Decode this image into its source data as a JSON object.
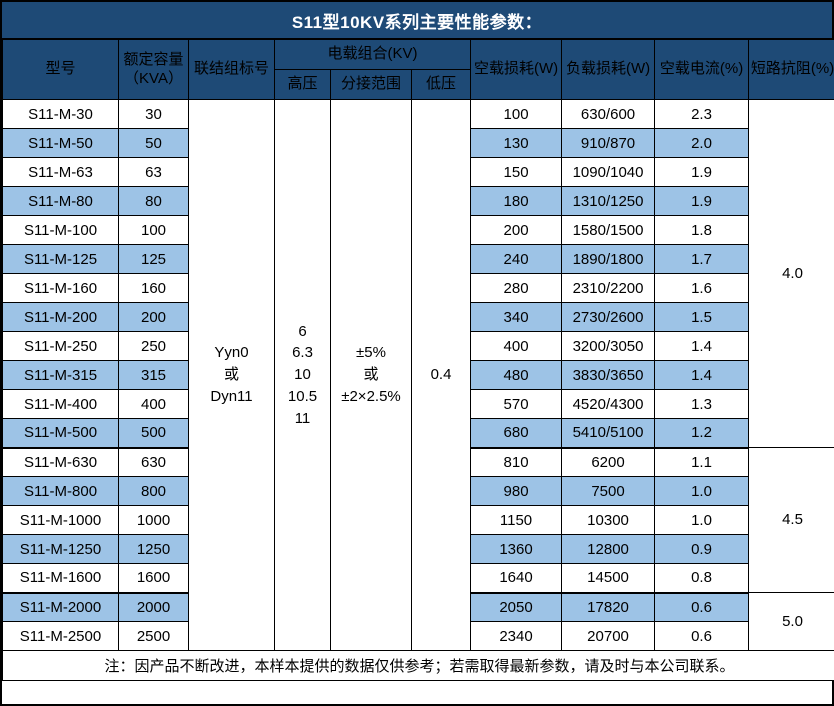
{
  "title": "S11型10KV系列主要性能参数：",
  "colors": {
    "header_bg": "#1E4A76",
    "stripe_bg": "#9DC3E6",
    "border": "#000000"
  },
  "table": {
    "headers": {
      "model": "型号",
      "capacity": "额定容量\n（KVA）",
      "connection": "联结组标号",
      "voltage_group": "电载组合(KV)",
      "hv": "高压",
      "tap_range": "分接范围",
      "lv": "低压",
      "no_load_loss": "空载损耗(W)",
      "load_loss": "负载损耗(W)",
      "no_load_current": "空载电流(%)",
      "impedance": "短路抗阻(%)"
    },
    "merged": {
      "connection": "Yyn0\n或\nDyn11",
      "hv": "6\n6.3\n10\n10.5\n11",
      "tap_range": "±5%\n或\n±2×2.5%",
      "lv": "0.4"
    },
    "rows": [
      {
        "model": "S11-M-30",
        "capacity": "30",
        "no_load_loss": "100",
        "load_loss": "630/600",
        "no_load_current": "2.3"
      },
      {
        "model": "S11-M-50",
        "capacity": "50",
        "no_load_loss": "130",
        "load_loss": "910/870",
        "no_load_current": "2.0"
      },
      {
        "model": "S11-M-63",
        "capacity": "63",
        "no_load_loss": "150",
        "load_loss": "1090/1040",
        "no_load_current": "1.9"
      },
      {
        "model": "S11-M-80",
        "capacity": "80",
        "no_load_loss": "180",
        "load_loss": "1310/1250",
        "no_load_current": "1.9"
      },
      {
        "model": "S11-M-100",
        "capacity": "100",
        "no_load_loss": "200",
        "load_loss": "1580/1500",
        "no_load_current": "1.8"
      },
      {
        "model": "S11-M-125",
        "capacity": "125",
        "no_load_loss": "240",
        "load_loss": "1890/1800",
        "no_load_current": "1.7"
      },
      {
        "model": "S11-M-160",
        "capacity": "160",
        "no_load_loss": "280",
        "load_loss": "2310/2200",
        "no_load_current": "1.6"
      },
      {
        "model": "S11-M-200",
        "capacity": "200",
        "no_load_loss": "340",
        "load_loss": "2730/2600",
        "no_load_current": "1.5"
      },
      {
        "model": "S11-M-250",
        "capacity": "250",
        "no_load_loss": "400",
        "load_loss": "3200/3050",
        "no_load_current": "1.4"
      },
      {
        "model": "S11-M-315",
        "capacity": "315",
        "no_load_loss": "480",
        "load_loss": "3830/3650",
        "no_load_current": "1.4"
      },
      {
        "model": "S11-M-400",
        "capacity": "400",
        "no_load_loss": "570",
        "load_loss": "4520/4300",
        "no_load_current": "1.3"
      },
      {
        "model": "S11-M-500",
        "capacity": "500",
        "no_load_loss": "680",
        "load_loss": "5410/5100",
        "no_load_current": "1.2"
      },
      {
        "model": "S11-M-630",
        "capacity": "630",
        "no_load_loss": "810",
        "load_loss": "6200",
        "no_load_current": "1.1"
      },
      {
        "model": "S11-M-800",
        "capacity": "800",
        "no_load_loss": "980",
        "load_loss": "7500",
        "no_load_current": "1.0"
      },
      {
        "model": "S11-M-1000",
        "capacity": "1000",
        "no_load_loss": "1150",
        "load_loss": "10300",
        "no_load_current": "1.0"
      },
      {
        "model": "S11-M-1250",
        "capacity": "1250",
        "no_load_loss": "1360",
        "load_loss": "12800",
        "no_load_current": "0.9"
      },
      {
        "model": "S11-M-1600",
        "capacity": "1600",
        "no_load_loss": "1640",
        "load_loss": "14500",
        "no_load_current": "0.8"
      },
      {
        "model": "S11-M-2000",
        "capacity": "2000",
        "no_load_loss": "2050",
        "load_loss": "17820",
        "no_load_current": "0.6"
      },
      {
        "model": "S11-M-2500",
        "capacity": "2500",
        "no_load_loss": "2340",
        "load_loss": "20700",
        "no_load_current": "0.6"
      }
    ],
    "impedance_groups": [
      {
        "value": "4.0",
        "span": 12
      },
      {
        "value": "4.5",
        "span": 5
      },
      {
        "value": "5.0",
        "span": 2
      }
    ],
    "section_end_rows": [
      11,
      16
    ]
  },
  "note": "注：因产品不断改进，本样本提供的数据仅供参考；若需取得最新参数，请及时与本公司联系。"
}
